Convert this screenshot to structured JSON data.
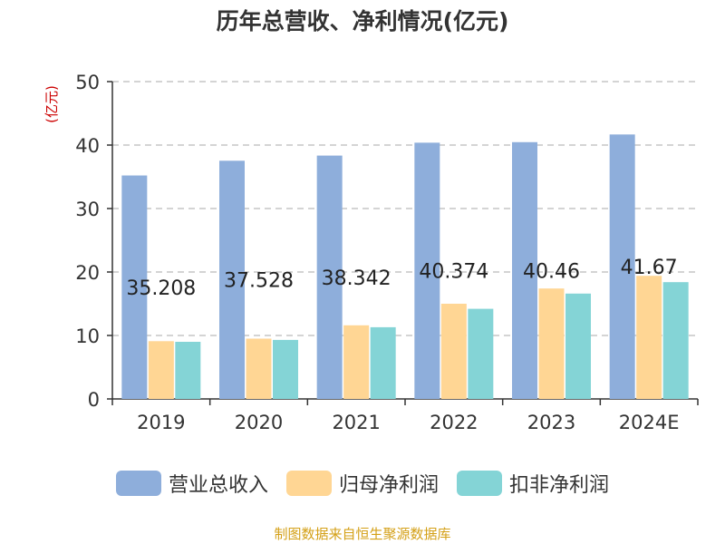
{
  "title": "历年总营收、净利情况(亿元)",
  "source_note": "制图数据来自恒生聚源数据库",
  "colors": {
    "revenue": "#8eaedb",
    "net_profit": "#ffd694",
    "deducted_net_profit": "#84d4d6",
    "unit_label": "#cc0000",
    "axis": "#333333",
    "grid": "#bbbbbb"
  },
  "legend": [
    {
      "label": "营业总收入",
      "color_key": "revenue"
    },
    {
      "label": "归母净利润",
      "color_key": "net_profit"
    },
    {
      "label": "扣非净利润",
      "color_key": "deducted_net_profit"
    }
  ],
  "chart_data": {
    "type": "bar",
    "title": "历年总营收、净利情况(亿元)",
    "ylabel": "(亿元)",
    "xlabel": "",
    "ylim": [
      0,
      50
    ],
    "yticks": [
      0,
      10,
      20,
      30,
      40,
      50
    ],
    "grid": true,
    "legend_position": "bottom",
    "categories": [
      "2019",
      "2020",
      "2021",
      "2022",
      "2023",
      "2024E"
    ],
    "series": [
      {
        "name": "营业总收入",
        "values": [
          35.208,
          37.528,
          38.342,
          40.374,
          40.46,
          41.67
        ],
        "labels": [
          "35.208",
          "37.528",
          "38.342",
          "40.374",
          "40.46",
          "41.67"
        ]
      },
      {
        "name": "归母净利润",
        "values": [
          9.1,
          9.5,
          11.6,
          15.0,
          17.4,
          19.4
        ]
      },
      {
        "name": "扣非净利润",
        "values": [
          9.0,
          9.3,
          11.3,
          14.2,
          16.6,
          18.4
        ]
      }
    ]
  }
}
